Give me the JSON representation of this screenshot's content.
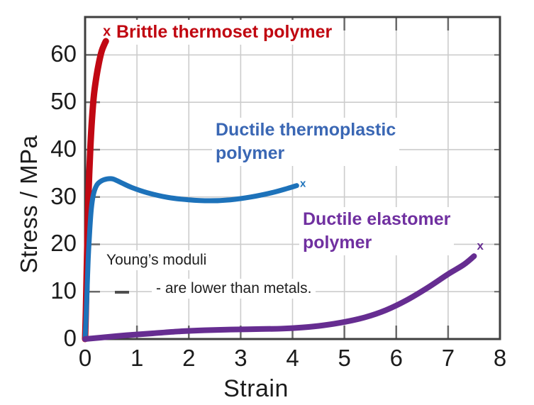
{
  "figure": {
    "background": "#ffffff",
    "frame_color": "#3f3f3f",
    "grid_color": "#cccccc",
    "tick_color": "#6a6a6a",
    "text_color": "#1c1c1c"
  },
  "chart_data": {
    "type": "line",
    "title": "",
    "xlabel": "Strain",
    "ylabel": "Stress / MPa",
    "xlim": [
      0,
      8
    ],
    "ylim": [
      0,
      68
    ],
    "xticks": [
      0,
      1,
      2,
      3,
      4,
      5,
      6,
      7,
      8
    ],
    "yticks": [
      0,
      10,
      20,
      30,
      40,
      50,
      60
    ],
    "grid": true,
    "legend_position": "labels-on-plot",
    "series": [
      {
        "name": "Brittle thermoset polymer",
        "color": "#c10813",
        "label_color": "#c00610",
        "stroke_width": 9,
        "marker_size": 20,
        "end_marker": "x",
        "end_marker_at": [
          0.42,
          64.9
        ],
        "label_lines": [
          "Brittle thermoset polymer"
        ],
        "points": [
          [
            0,
            0
          ],
          [
            0.015,
            6
          ],
          [
            0.03,
            14
          ],
          [
            0.05,
            24
          ],
          [
            0.07,
            32
          ],
          [
            0.1,
            40
          ],
          [
            0.13,
            46
          ],
          [
            0.17,
            51.5
          ],
          [
            0.22,
            55.5
          ],
          [
            0.27,
            58.5
          ],
          [
            0.32,
            60.8
          ],
          [
            0.37,
            62.2
          ],
          [
            0.4,
            62.9
          ]
        ]
      },
      {
        "name": "Ductile thermoplastic polymer",
        "color": "#1d72ba",
        "label_color": "#3a67b4",
        "stroke_width": 7,
        "marker_size": 15,
        "end_marker": "x",
        "end_marker_at": [
          4.2,
          32.8
        ],
        "label_lines": [
          "Ductile thermoplastic",
          "polymer"
        ],
        "points": [
          [
            0,
            0
          ],
          [
            0.02,
            5
          ],
          [
            0.04,
            11
          ],
          [
            0.06,
            17
          ],
          [
            0.09,
            23
          ],
          [
            0.12,
            27.5
          ],
          [
            0.16,
            30.5
          ],
          [
            0.22,
            32.4
          ],
          [
            0.3,
            33.3
          ],
          [
            0.42,
            33.8
          ],
          [
            0.54,
            33.8
          ],
          [
            0.7,
            33
          ],
          [
            0.9,
            32
          ],
          [
            1.2,
            30.9
          ],
          [
            1.6,
            29.9
          ],
          [
            2,
            29.4
          ],
          [
            2.4,
            29.2
          ],
          [
            2.8,
            29.4
          ],
          [
            3.2,
            30
          ],
          [
            3.6,
            30.9
          ],
          [
            3.9,
            31.8
          ],
          [
            4.08,
            32.4
          ]
        ]
      },
      {
        "name": "Ductile elastomer polymer",
        "color": "#662d91",
        "label_color": "#7030a0",
        "stroke_width": 8,
        "marker_size": 17,
        "end_marker": "x",
        "end_marker_at": [
          7.62,
          19.7
        ],
        "label_lines": [
          "Ductile elastomer",
          "polymer"
        ],
        "points": [
          [
            0,
            0
          ],
          [
            0.3,
            0.3
          ],
          [
            0.8,
            0.8
          ],
          [
            1.3,
            1.2
          ],
          [
            1.8,
            1.6
          ],
          [
            2.3,
            1.85
          ],
          [
            2.8,
            2
          ],
          [
            3.3,
            2.1
          ],
          [
            3.8,
            2.2
          ],
          [
            4.2,
            2.45
          ],
          [
            4.6,
            2.9
          ],
          [
            5,
            3.6
          ],
          [
            5.4,
            4.6
          ],
          [
            5.8,
            6.1
          ],
          [
            6.2,
            8.2
          ],
          [
            6.6,
            10.8
          ],
          [
            7,
            13.7
          ],
          [
            7.3,
            15.7
          ],
          [
            7.5,
            17.5
          ]
        ]
      }
    ]
  },
  "annotation": {
    "line1": "Young’s moduli",
    "line2": "- are lower than metals.",
    "dash": "—"
  }
}
